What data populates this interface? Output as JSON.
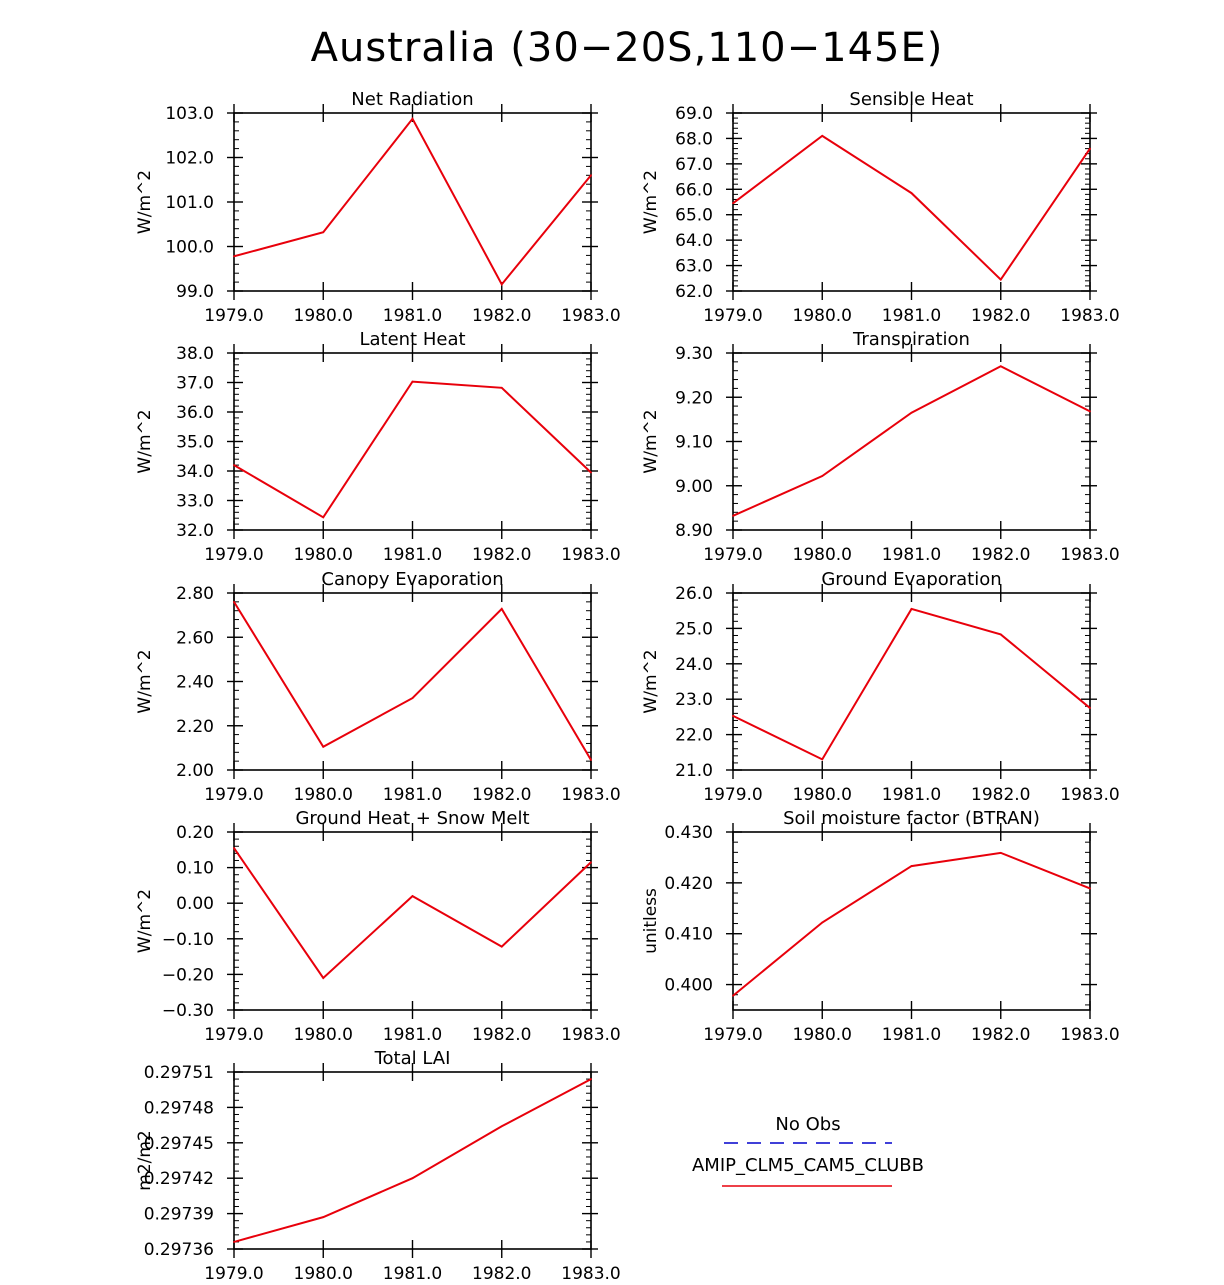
{
  "figure": {
    "title": "Australia (30−20S,110−145E)",
    "line_color": "#e8000b",
    "obs_color": "#0000cc"
  },
  "legend": {
    "obs_label": "No Obs",
    "model_label": "AMIP_CLM5_CAM5_CLUBB"
  },
  "chart_data": [
    {
      "type": "line",
      "title": "Net Radiation",
      "ylabel": "W/m^2",
      "xlabel": "",
      "x": [
        1979,
        1980,
        1981,
        1982,
        1983
      ],
      "xticklabels": [
        "1979.0",
        "1980.0",
        "1981.0",
        "1982.0",
        "1983.0"
      ],
      "ylim": [
        99.0,
        103.0
      ],
      "yticks": [
        99.0,
        100.0,
        101.0,
        102.0,
        103.0
      ],
      "yticklabels": [
        "99.0",
        "100.0",
        "101.0",
        "102.0",
        "103.0"
      ],
      "series": [
        {
          "name": "AMIP_CLM5_CAM5_CLUBB",
          "values": [
            99.78,
            100.32,
            102.87,
            99.15,
            101.6
          ]
        }
      ]
    },
    {
      "type": "line",
      "title": "Sensible Heat",
      "ylabel": "W/m^2",
      "xlabel": "",
      "x": [
        1979,
        1980,
        1981,
        1982,
        1983
      ],
      "xticklabels": [
        "1979.0",
        "1980.0",
        "1981.0",
        "1982.0",
        "1983.0"
      ],
      "ylim": [
        62.0,
        69.0
      ],
      "yticks": [
        62,
        63,
        64,
        65,
        66,
        67,
        68,
        69
      ],
      "yticklabels": [
        "62.0",
        "63.0",
        "64.0",
        "65.0",
        "66.0",
        "67.0",
        "68.0",
        "69.0"
      ],
      "series": [
        {
          "name": "AMIP_CLM5_CAM5_CLUBB",
          "values": [
            65.45,
            68.1,
            65.85,
            62.45,
            67.6
          ]
        }
      ]
    },
    {
      "type": "line",
      "title": "Latent Heat",
      "ylabel": "W/m^2",
      "xlabel": "",
      "x": [
        1979,
        1980,
        1981,
        1982,
        1983
      ],
      "xticklabels": [
        "1979.0",
        "1980.0",
        "1981.0",
        "1982.0",
        "1983.0"
      ],
      "ylim": [
        32.0,
        38.0
      ],
      "yticks": [
        32,
        33,
        34,
        35,
        36,
        37,
        38
      ],
      "yticklabels": [
        "32.0",
        "33.0",
        "34.0",
        "35.0",
        "36.0",
        "37.0",
        "38.0"
      ],
      "series": [
        {
          "name": "AMIP_CLM5_CAM5_CLUBB",
          "values": [
            34.2,
            32.43,
            37.03,
            36.82,
            33.95
          ]
        }
      ]
    },
    {
      "type": "line",
      "title": "Transpiration",
      "ylabel": "W/m^2",
      "xlabel": "",
      "x": [
        1979,
        1980,
        1981,
        1982,
        1983
      ],
      "xticklabels": [
        "1979.0",
        "1980.0",
        "1981.0",
        "1982.0",
        "1983.0"
      ],
      "ylim": [
        8.9,
        9.3
      ],
      "yticks": [
        8.9,
        9.0,
        9.1,
        9.2,
        9.3
      ],
      "yticklabels": [
        "8.90",
        "9.00",
        "9.10",
        "9.20",
        "9.30"
      ],
      "series": [
        {
          "name": "AMIP_CLM5_CAM5_CLUBB",
          "values": [
            8.932,
            9.022,
            9.165,
            9.27,
            9.168
          ]
        }
      ]
    },
    {
      "type": "line",
      "title": "Canopy Evaporation",
      "ylabel": "W/m^2",
      "xlabel": "",
      "x": [
        1979,
        1980,
        1981,
        1982,
        1983
      ],
      "xticklabels": [
        "1979.0",
        "1980.0",
        "1981.0",
        "1982.0",
        "1983.0"
      ],
      "ylim": [
        2.0,
        2.8
      ],
      "yticks": [
        2.0,
        2.2,
        2.4,
        2.6,
        2.8
      ],
      "yticklabels": [
        "2.00",
        "2.20",
        "2.40",
        "2.60",
        "2.80"
      ],
      "series": [
        {
          "name": "AMIP_CLM5_CAM5_CLUBB",
          "values": [
            2.76,
            2.105,
            2.325,
            2.728,
            2.045
          ]
        }
      ]
    },
    {
      "type": "line",
      "title": "Ground Evaporation",
      "ylabel": "W/m^2",
      "xlabel": "",
      "x": [
        1979,
        1980,
        1981,
        1982,
        1983
      ],
      "xticklabels": [
        "1979.0",
        "1980.0",
        "1981.0",
        "1982.0",
        "1983.0"
      ],
      "ylim": [
        21.0,
        26.0
      ],
      "yticks": [
        21,
        22,
        23,
        24,
        25,
        26
      ],
      "yticklabels": [
        "21.0",
        "22.0",
        "23.0",
        "24.0",
        "25.0",
        "26.0"
      ],
      "series": [
        {
          "name": "AMIP_CLM5_CAM5_CLUBB",
          "values": [
            22.53,
            21.3,
            25.55,
            24.83,
            22.75
          ]
        }
      ]
    },
    {
      "type": "line",
      "title": "Ground Heat + Snow Melt",
      "ylabel": "W/m^2",
      "xlabel": "",
      "x": [
        1979,
        1980,
        1981,
        1982,
        1983
      ],
      "xticklabels": [
        "1979.0",
        "1980.0",
        "1981.0",
        "1982.0",
        "1983.0"
      ],
      "ylim": [
        -0.3,
        0.2
      ],
      "yticks": [
        -0.3,
        -0.2,
        -0.1,
        0.0,
        0.1,
        0.2
      ],
      "yticklabels": [
        "−0.30",
        "−0.20",
        "−0.10",
        "0.00",
        "0.10",
        "0.20"
      ],
      "series": [
        {
          "name": "AMIP_CLM5_CAM5_CLUBB",
          "values": [
            0.155,
            -0.21,
            0.02,
            -0.122,
            0.115
          ]
        }
      ]
    },
    {
      "type": "line",
      "title": "Soil moisture factor (BTRAN)",
      "ylabel": "unitless",
      "xlabel": "",
      "x": [
        1979,
        1980,
        1981,
        1982,
        1983
      ],
      "xticklabels": [
        "1979.0",
        "1980.0",
        "1981.0",
        "1982.0",
        "1983.0"
      ],
      "ylim": [
        0.395,
        0.43
      ],
      "yticks": [
        0.4,
        0.41,
        0.42,
        0.43
      ],
      "yticklabels": [
        "0.400",
        "0.410",
        "0.420",
        "0.430"
      ],
      "series": [
        {
          "name": "AMIP_CLM5_CAM5_CLUBB",
          "values": [
            0.3978,
            0.4122,
            0.4233,
            0.4259,
            0.4189
          ]
        }
      ]
    },
    {
      "type": "line",
      "title": "Total LAI",
      "ylabel": "m2/m2",
      "xlabel": "",
      "x": [
        1979,
        1980,
        1981,
        1982,
        1983
      ],
      "xticklabels": [
        "1979.0",
        "1980.0",
        "1981.0",
        "1982.0",
        "1983.0"
      ],
      "ylim": [
        0.29736,
        0.29751
      ],
      "yticks": [
        0.29736,
        0.29739,
        0.29742,
        0.29745,
        0.29748,
        0.29751
      ],
      "yticklabels": [
        "0.29736",
        "0.29739",
        "0.29742",
        "0.29745",
        "0.29748",
        "0.29751"
      ],
      "series": [
        {
          "name": "AMIP_CLM5_CAM5_CLUBB",
          "values": [
            0.297366,
            0.297387,
            0.29742,
            0.297464,
            0.297504
          ]
        }
      ]
    }
  ]
}
